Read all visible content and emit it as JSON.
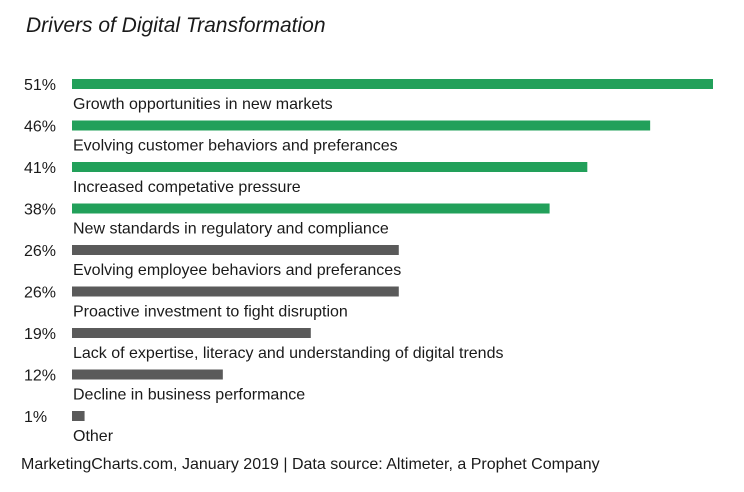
{
  "chart_data": {
    "type": "bar",
    "orientation": "horizontal",
    "title": "Drivers of Digital Transformation",
    "source": "MarketingCharts.com, January 2019 | Data source: Altimeter, a Prophet Company",
    "categories": [
      "Growth opportunities in new markets",
      "Evolving customer behaviors and preferances",
      "Increased competative pressure",
      "New standards in regulatory and compliance",
      "Evolving employee behaviors and preferances",
      "Proactive investment to fight disruption",
      "Lack of expertise, literacy and understanding of digital trends",
      "Decline in business performance",
      "Other"
    ],
    "values": [
      51,
      46,
      41,
      38,
      26,
      26,
      19,
      12,
      1
    ],
    "value_labels": [
      "51%",
      "46%",
      "41%",
      "38%",
      "26%",
      "26%",
      "19%",
      "12%",
      "1%"
    ],
    "highlight": [
      true,
      true,
      true,
      true,
      false,
      false,
      false,
      false,
      false
    ],
    "colors": {
      "highlight": "#22a05a",
      "default": "#5a5a5a"
    },
    "xlim": [
      0,
      51
    ],
    "grid": false,
    "legend": "none"
  }
}
